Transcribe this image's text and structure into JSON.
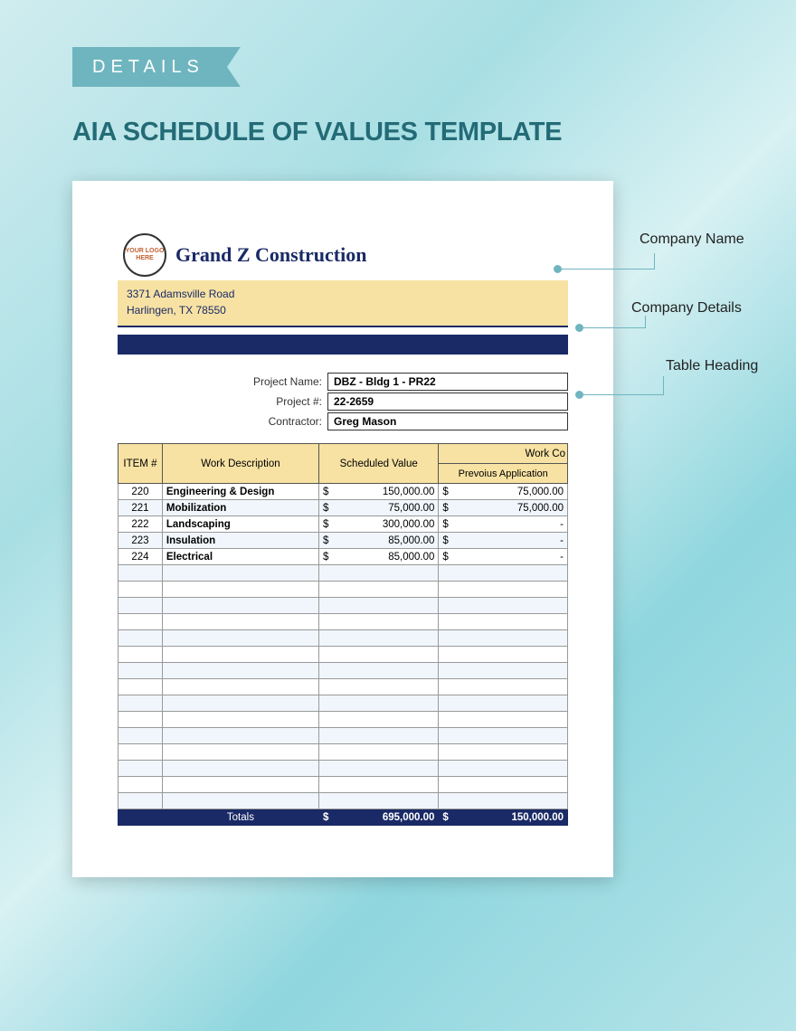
{
  "ribbon_label": "DETAILS",
  "title": "AIA SCHEDULE OF VALUES TEMPLATE",
  "colors": {
    "ribbon": "#6fb5bf",
    "title": "#236b76",
    "header_bg": "#f7e2a3",
    "dark": "#1a2a66",
    "row_alt": "#f0f6fb",
    "doc_bg": "#ffffff"
  },
  "company": {
    "logo_text": "YOUR LOGO HERE",
    "name": "Grand Z Construction",
    "address_line1": "3371 Adamsville Road",
    "address_line2": "Harlingen, TX 78550"
  },
  "project": {
    "name_label": "Project Name:",
    "name_value": "DBZ - Bldg 1 - PR22",
    "num_label": "Project #:",
    "num_value": "22-2659",
    "contractor_label": "Contractor:",
    "contractor_value": "Greg Mason"
  },
  "table": {
    "headers": {
      "item": "ITEM #",
      "desc": "Work Description",
      "sched": "Scheduled Value",
      "workco": "Work Co",
      "prev": "Prevoius Application"
    },
    "currency": "$",
    "rows": [
      {
        "item": "220",
        "desc": "Engineering & Design",
        "sched": "150,000.00",
        "prev": "75,000.00"
      },
      {
        "item": "221",
        "desc": "Mobilization",
        "sched": "75,000.00",
        "prev": "75,000.00"
      },
      {
        "item": "222",
        "desc": "Landscaping",
        "sched": "300,000.00",
        "prev": "-"
      },
      {
        "item": "223",
        "desc": "Insulation",
        "sched": "85,000.00",
        "prev": "-"
      },
      {
        "item": "224",
        "desc": "Electrical",
        "sched": "85,000.00",
        "prev": "-"
      }
    ],
    "empty_rows": 15,
    "totals": {
      "label": "Totals",
      "sched": "695,000.00",
      "prev": "150,000.00"
    }
  },
  "annotations": {
    "company_name": "Company Name",
    "company_details": "Company Details",
    "table_heading": "Table Heading"
  }
}
